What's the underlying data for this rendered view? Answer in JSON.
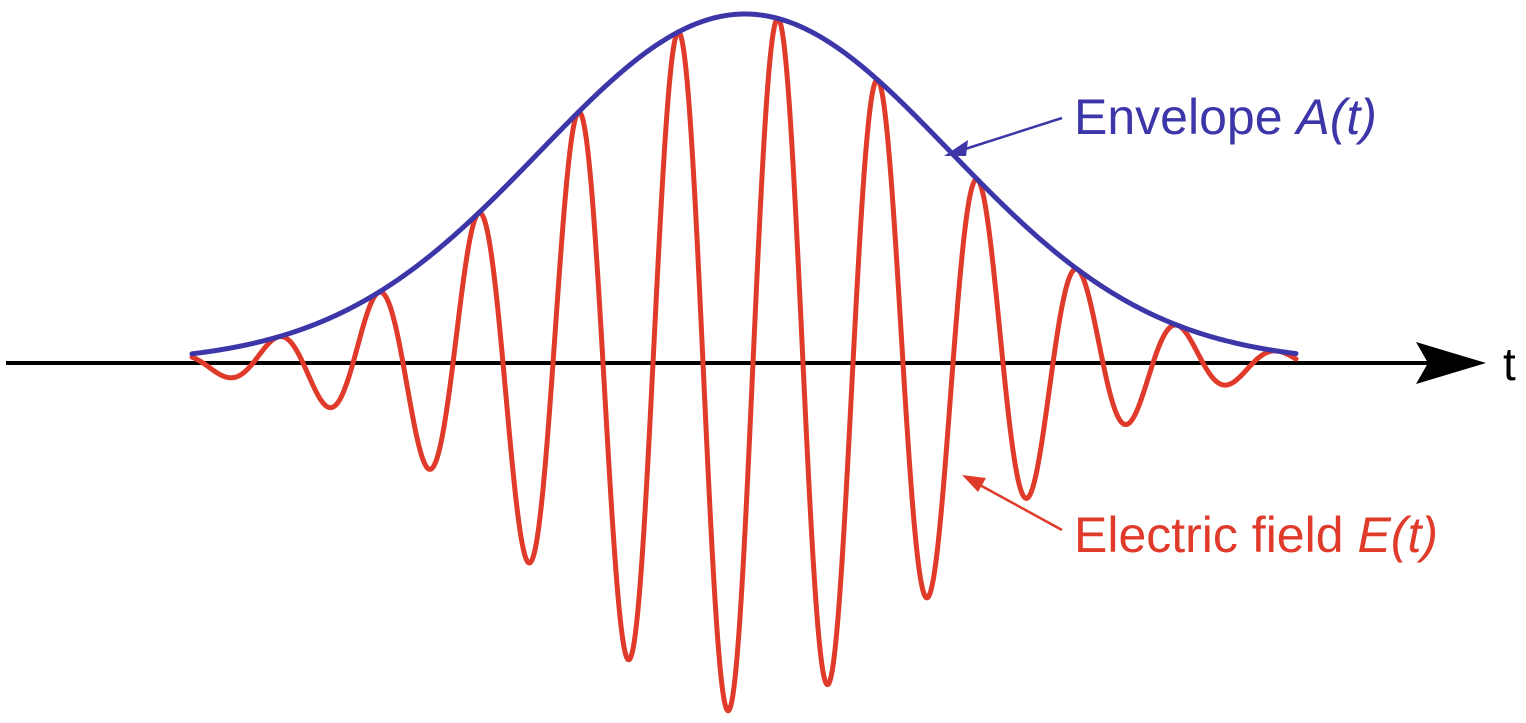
{
  "axis": {
    "label": "t"
  },
  "labels": {
    "envelope_text": "Envelope ",
    "envelope_symbol": "A(t)",
    "field_text": "Electric field ",
    "field_symbol": "E(t)"
  },
  "colors": {
    "envelope": "#3d36a8",
    "field": "#e03a2b",
    "axis": "#000000"
  },
  "curves": {
    "envelope_peak": 1.0,
    "field_cycles_visible": 11
  }
}
